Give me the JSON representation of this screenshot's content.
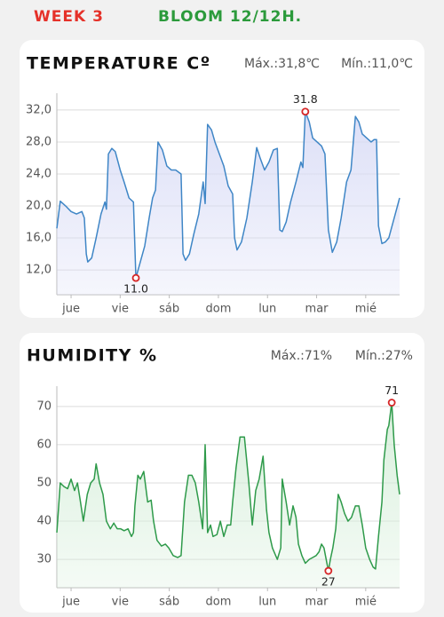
{
  "header": {
    "week": "WEEK 3",
    "phase": "BLOOM 12/12H."
  },
  "chart_data": [
    {
      "type": "line",
      "title": "TEMPERATURE Cº",
      "stats": [
        "Máx.:31,8℃",
        "Mín.:11,0℃"
      ],
      "color": "#3f86c6",
      "fill": "#d9dcf6",
      "xlim": [
        -0.29,
        6.69
      ],
      "ylim": [
        8.9,
        34.1
      ],
      "xticks": [
        {
          "value": 0,
          "label": "jue"
        },
        {
          "value": 1,
          "label": "vie"
        },
        {
          "value": 2,
          "label": "sáb"
        },
        {
          "value": 3,
          "label": "dom"
        },
        {
          "value": 4,
          "label": "lun"
        },
        {
          "value": 5,
          "label": "mar"
        },
        {
          "value": 6,
          "label": "mié"
        }
      ],
      "yticks": [
        {
          "value": 12,
          "label": "12,0"
        },
        {
          "value": 16,
          "label": "16,0"
        },
        {
          "value": 20,
          "label": "20,0"
        },
        {
          "value": 24,
          "label": "24,0"
        },
        {
          "value": 28,
          "label": "28,0"
        },
        {
          "value": 32,
          "label": "32,0"
        }
      ],
      "grid": true,
      "x": [
        -0.29,
        -0.22,
        -0.11,
        0,
        0.11,
        0.22,
        0.27,
        0.31,
        0.34,
        0.42,
        0.51,
        0.61,
        0.69,
        0.72,
        0.76,
        0.83,
        0.9,
        1.0,
        1.08,
        1.18,
        1.27,
        1.32,
        1.41,
        1.5,
        1.59,
        1.66,
        1.72,
        1.77,
        1.86,
        1.95,
        2.04,
        2.13,
        2.24,
        2.28,
        2.33,
        2.41,
        2.5,
        2.6,
        2.69,
        2.73,
        2.78,
        2.86,
        2.93,
        3.02,
        3.11,
        3.2,
        3.29,
        3.33,
        3.38,
        3.47,
        3.58,
        3.69,
        3.78,
        3.85,
        3.94,
        4.03,
        4.12,
        4.2,
        4.25,
        4.3,
        4.38,
        4.47,
        4.58,
        4.68,
        4.72,
        4.77,
        4.85,
        4.92,
        5.01,
        5.1,
        5.17,
        5.24,
        5.32,
        5.41,
        5.5,
        5.61,
        5.7,
        5.79,
        5.86,
        5.93,
        6.02,
        6.11,
        6.17,
        6.22,
        6.26,
        6.33,
        6.4,
        6.47,
        6.58,
        6.69
      ],
      "values": [
        17.2,
        20.6,
        20.0,
        19.3,
        19.0,
        19.3,
        18.5,
        14,
        13.0,
        13.5,
        16,
        19,
        20.5,
        19.6,
        26.5,
        27.2,
        26.8,
        24.5,
        23,
        21,
        20.5,
        11.0,
        13,
        15,
        18.5,
        21,
        22,
        28,
        27,
        25,
        24.5,
        24.5,
        24,
        14,
        13.2,
        14,
        16.5,
        19,
        23,
        20.3,
        30.2,
        29.5,
        28,
        26.5,
        25,
        22.5,
        21.5,
        16,
        14.5,
        15.5,
        18.5,
        23,
        27.3,
        26,
        24.5,
        25.5,
        27,
        27.2,
        17,
        16.8,
        18,
        20.5,
        23,
        25.5,
        24.8,
        31.8,
        30.5,
        28.5,
        28,
        27.5,
        26.5,
        17,
        14.2,
        15.5,
        18.5,
        23,
        24.5,
        31.2,
        30.5,
        29,
        28.5,
        28,
        28.3,
        28.3,
        17.5,
        15.3,
        15.5,
        16,
        18.5,
        21
      ],
      "annotations": [
        {
          "text": "31.8",
          "x": 4.77,
          "y": 31.8,
          "pos": "above"
        },
        {
          "text": "11.0",
          "x": 1.32,
          "y": 11.0,
          "pos": "below"
        }
      ]
    },
    {
      "type": "line",
      "title": "HUMIDITY %",
      "stats": [
        "Máx.:71%",
        "Mín.:27%"
      ],
      "color": "#2e9a4a",
      "fill": "#d5eed9",
      "xlim": [
        -0.29,
        6.69
      ],
      "ylim": [
        22.6,
        75.3
      ],
      "xticks": [
        {
          "value": 0,
          "label": "jue"
        },
        {
          "value": 1,
          "label": "vie"
        },
        {
          "value": 2,
          "label": "sáb"
        },
        {
          "value": 3,
          "label": "dom"
        },
        {
          "value": 4,
          "label": "lun"
        },
        {
          "value": 5,
          "label": "mar"
        },
        {
          "value": 6,
          "label": "mié"
        }
      ],
      "yticks": [
        30,
        40,
        50,
        60,
        70
      ],
      "grid": true,
      "x": [
        -0.29,
        -0.22,
        -0.14,
        -0.07,
        0,
        0.07,
        0.13,
        0.18,
        0.25,
        0.33,
        0.4,
        0.47,
        0.51,
        0.58,
        0.65,
        0.72,
        0.8,
        0.87,
        0.94,
        1.01,
        1.08,
        1.16,
        1.23,
        1.27,
        1.3,
        1.36,
        1.41,
        1.48,
        1.56,
        1.63,
        1.68,
        1.75,
        1.84,
        1.92,
        1.99,
        2.08,
        2.17,
        2.24,
        2.31,
        2.39,
        2.46,
        2.53,
        2.6,
        2.68,
        2.73,
        2.78,
        2.84,
        2.89,
        2.97,
        3.04,
        3.11,
        3.18,
        3.25,
        3.29,
        3.36,
        3.44,
        3.53,
        3.62,
        3.69,
        3.76,
        3.83,
        3.91,
        3.98,
        4.03,
        4.1,
        4.2,
        4.27,
        4.3,
        4.38,
        4.45,
        4.52,
        4.58,
        4.63,
        4.7,
        4.77,
        4.85,
        4.92,
        4.99,
        5.05,
        5.1,
        5.15,
        5.21,
        5.24,
        5.28,
        5.33,
        5.39,
        5.44,
        5.5,
        5.57,
        5.64,
        5.71,
        5.79,
        5.86,
        5.93,
        6.0,
        6.08,
        6.15,
        6.2,
        6.26,
        6.33,
        6.37,
        6.44,
        6.47,
        6.53,
        6.58,
        6.64,
        6.69
      ],
      "values": [
        37,
        50,
        49,
        48.5,
        51,
        48,
        50,
        46,
        40,
        47,
        50,
        51,
        55,
        50,
        47,
        40,
        38,
        39.5,
        38,
        38,
        37.5,
        38,
        36,
        37,
        44,
        52,
        51,
        53,
        45,
        45.5,
        40,
        35,
        33.5,
        34,
        33,
        31,
        30.5,
        31,
        45,
        52,
        52,
        50,
        45,
        38,
        60,
        37,
        39,
        36,
        36.5,
        40,
        36,
        39,
        39,
        45,
        54,
        62,
        62,
        50,
        39,
        48,
        51,
        57,
        43,
        37,
        33,
        30,
        33,
        51,
        45,
        39,
        44,
        41,
        34,
        31,
        29,
        30,
        30.5,
        31,
        32,
        34,
        33,
        29,
        27,
        30,
        33,
        38,
        47,
        45,
        42,
        40,
        41,
        44,
        44,
        39,
        33,
        30,
        28,
        27.5,
        36,
        45,
        56,
        64,
        65,
        71,
        60,
        52,
        47
      ],
      "annotations": [
        {
          "text": "71",
          "x": 6.53,
          "y": 71,
          "pos": "above"
        },
        {
          "text": "27",
          "x": 5.24,
          "y": 27,
          "pos": "below"
        }
      ]
    }
  ]
}
